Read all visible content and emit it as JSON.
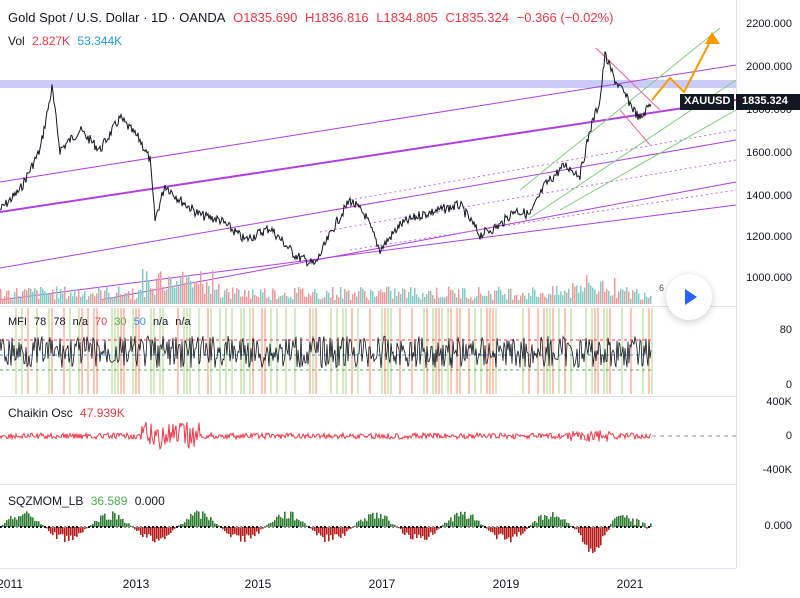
{
  "header": {
    "title": "Gold Spot / U.S. Dollar · 1D · OANDA",
    "open": "O1835.690",
    "high": "H1836.816",
    "low": "L1834.805",
    "close": "C1835.324",
    "change": "−0.366 (−0.02%)",
    "vol_label": "Vol",
    "vol_value1": "2.827K",
    "vol_value2": "53.344K"
  },
  "symbol_tag": "XAUUSD",
  "last_price": "1835.324",
  "price_axis": [
    "2200.000",
    "2000.000",
    "1800.000",
    "1600.000",
    "1400.000",
    "1200.000",
    "1000.000"
  ],
  "mfi": {
    "label": "MFI",
    "v1": "78",
    "v2": "78",
    "v3": "n/a",
    "v4": "70",
    "v5": "30",
    "v6": "50",
    "v7": "n/a",
    "v8": "n/a",
    "axis": [
      "80",
      "0"
    ]
  },
  "chaikin": {
    "label": "Chaikin Osc",
    "value": "47.939K",
    "axis": [
      "400K",
      "0",
      "-400K"
    ]
  },
  "sqz": {
    "label": "SQZMOM_LB",
    "value1": "36.589",
    "value2": "0.000",
    "axis": [
      "0.000"
    ]
  },
  "time_axis": [
    "2011",
    "2013",
    "2015",
    "2017",
    "2019",
    "2021"
  ],
  "badge": "6",
  "colors": {
    "red": "#f23645",
    "blue": "#2196f3",
    "purple": "#9c27b0",
    "green": "#4caf50",
    "orange": "#ff9800",
    "dark": "#131722"
  },
  "icons": {
    "play": "play-icon"
  }
}
